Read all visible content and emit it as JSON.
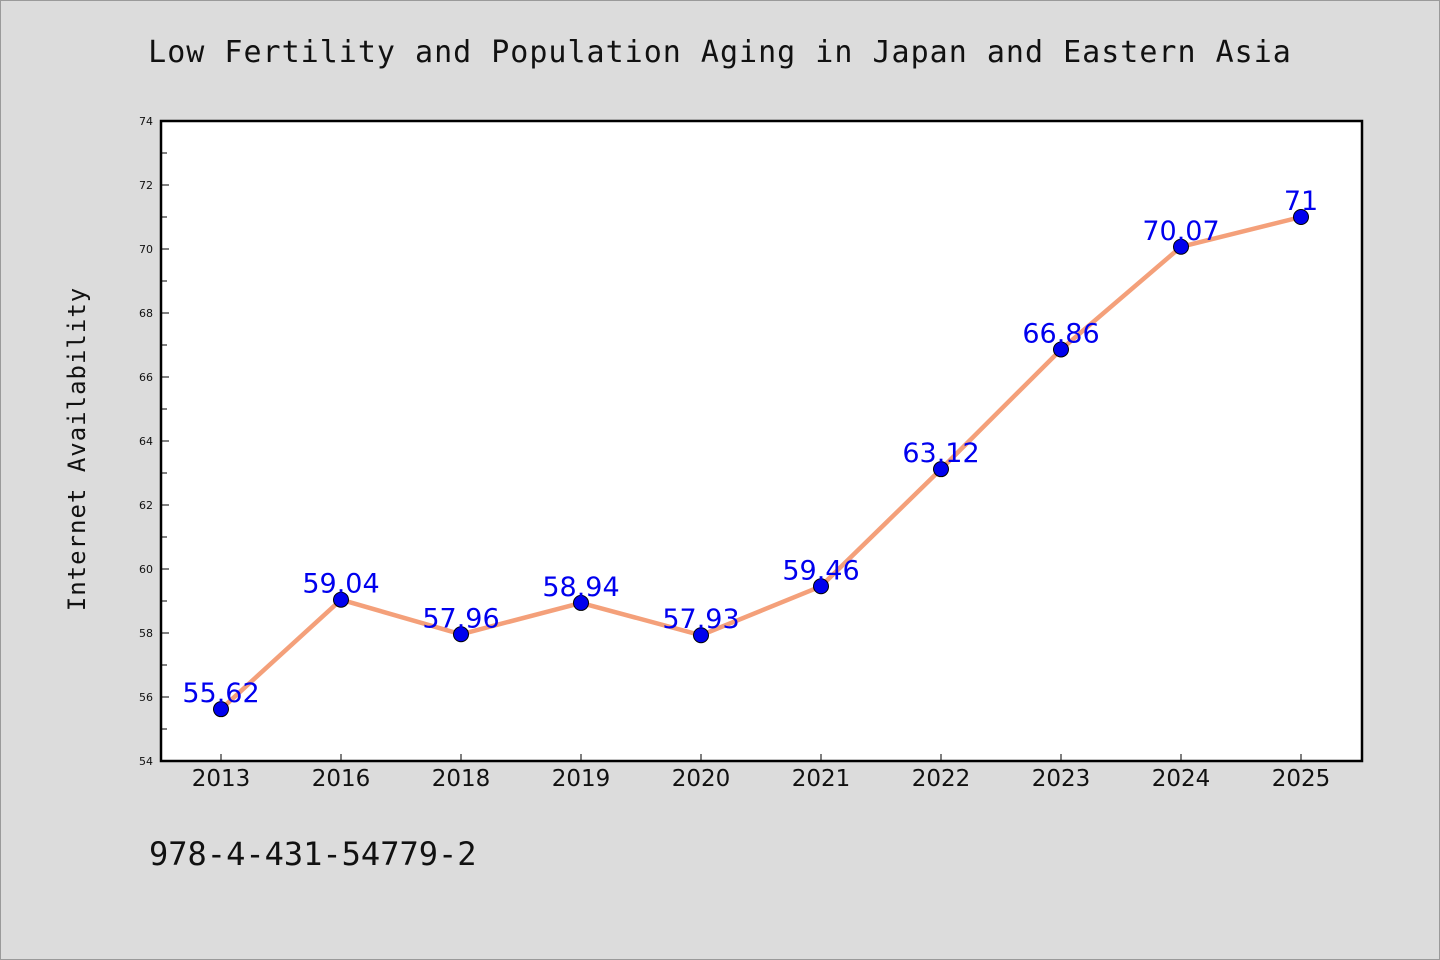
{
  "footer": {
    "code": "978-4-431-54779-2"
  },
  "chart_data": {
    "type": "line",
    "title": "Low Fertility and Population Aging in Japan and Eastern Asia",
    "xlabel": "",
    "ylabel": "Internet Availability",
    "categories": [
      "2013",
      "2016",
      "2018",
      "2019",
      "2020",
      "2021",
      "2022",
      "2023",
      "2024",
      "2025"
    ],
    "series": [
      {
        "values": [
          55.62,
          59.04,
          57.96,
          58.94,
          57.93,
          59.46,
          63.12,
          66.86,
          70.07,
          71
        ]
      }
    ],
    "data_labels": [
      "55.62",
      "59.04",
      "57.96",
      "58.94",
      "57.93",
      "59.46",
      "63.12",
      "66.86",
      "70.07",
      "71"
    ],
    "ylim": [
      54,
      74
    ],
    "yticks": [
      "54",
      "56",
      "58",
      "60",
      "62",
      "64",
      "66",
      "68",
      "70",
      "72",
      "74"
    ],
    "grid": false,
    "legend": false,
    "colors": {
      "line": "#f4a07a",
      "marker": "#0000ee",
      "label": "#0000ee",
      "background": "#dcdcdc",
      "plot_bg": "#ffffff"
    }
  }
}
